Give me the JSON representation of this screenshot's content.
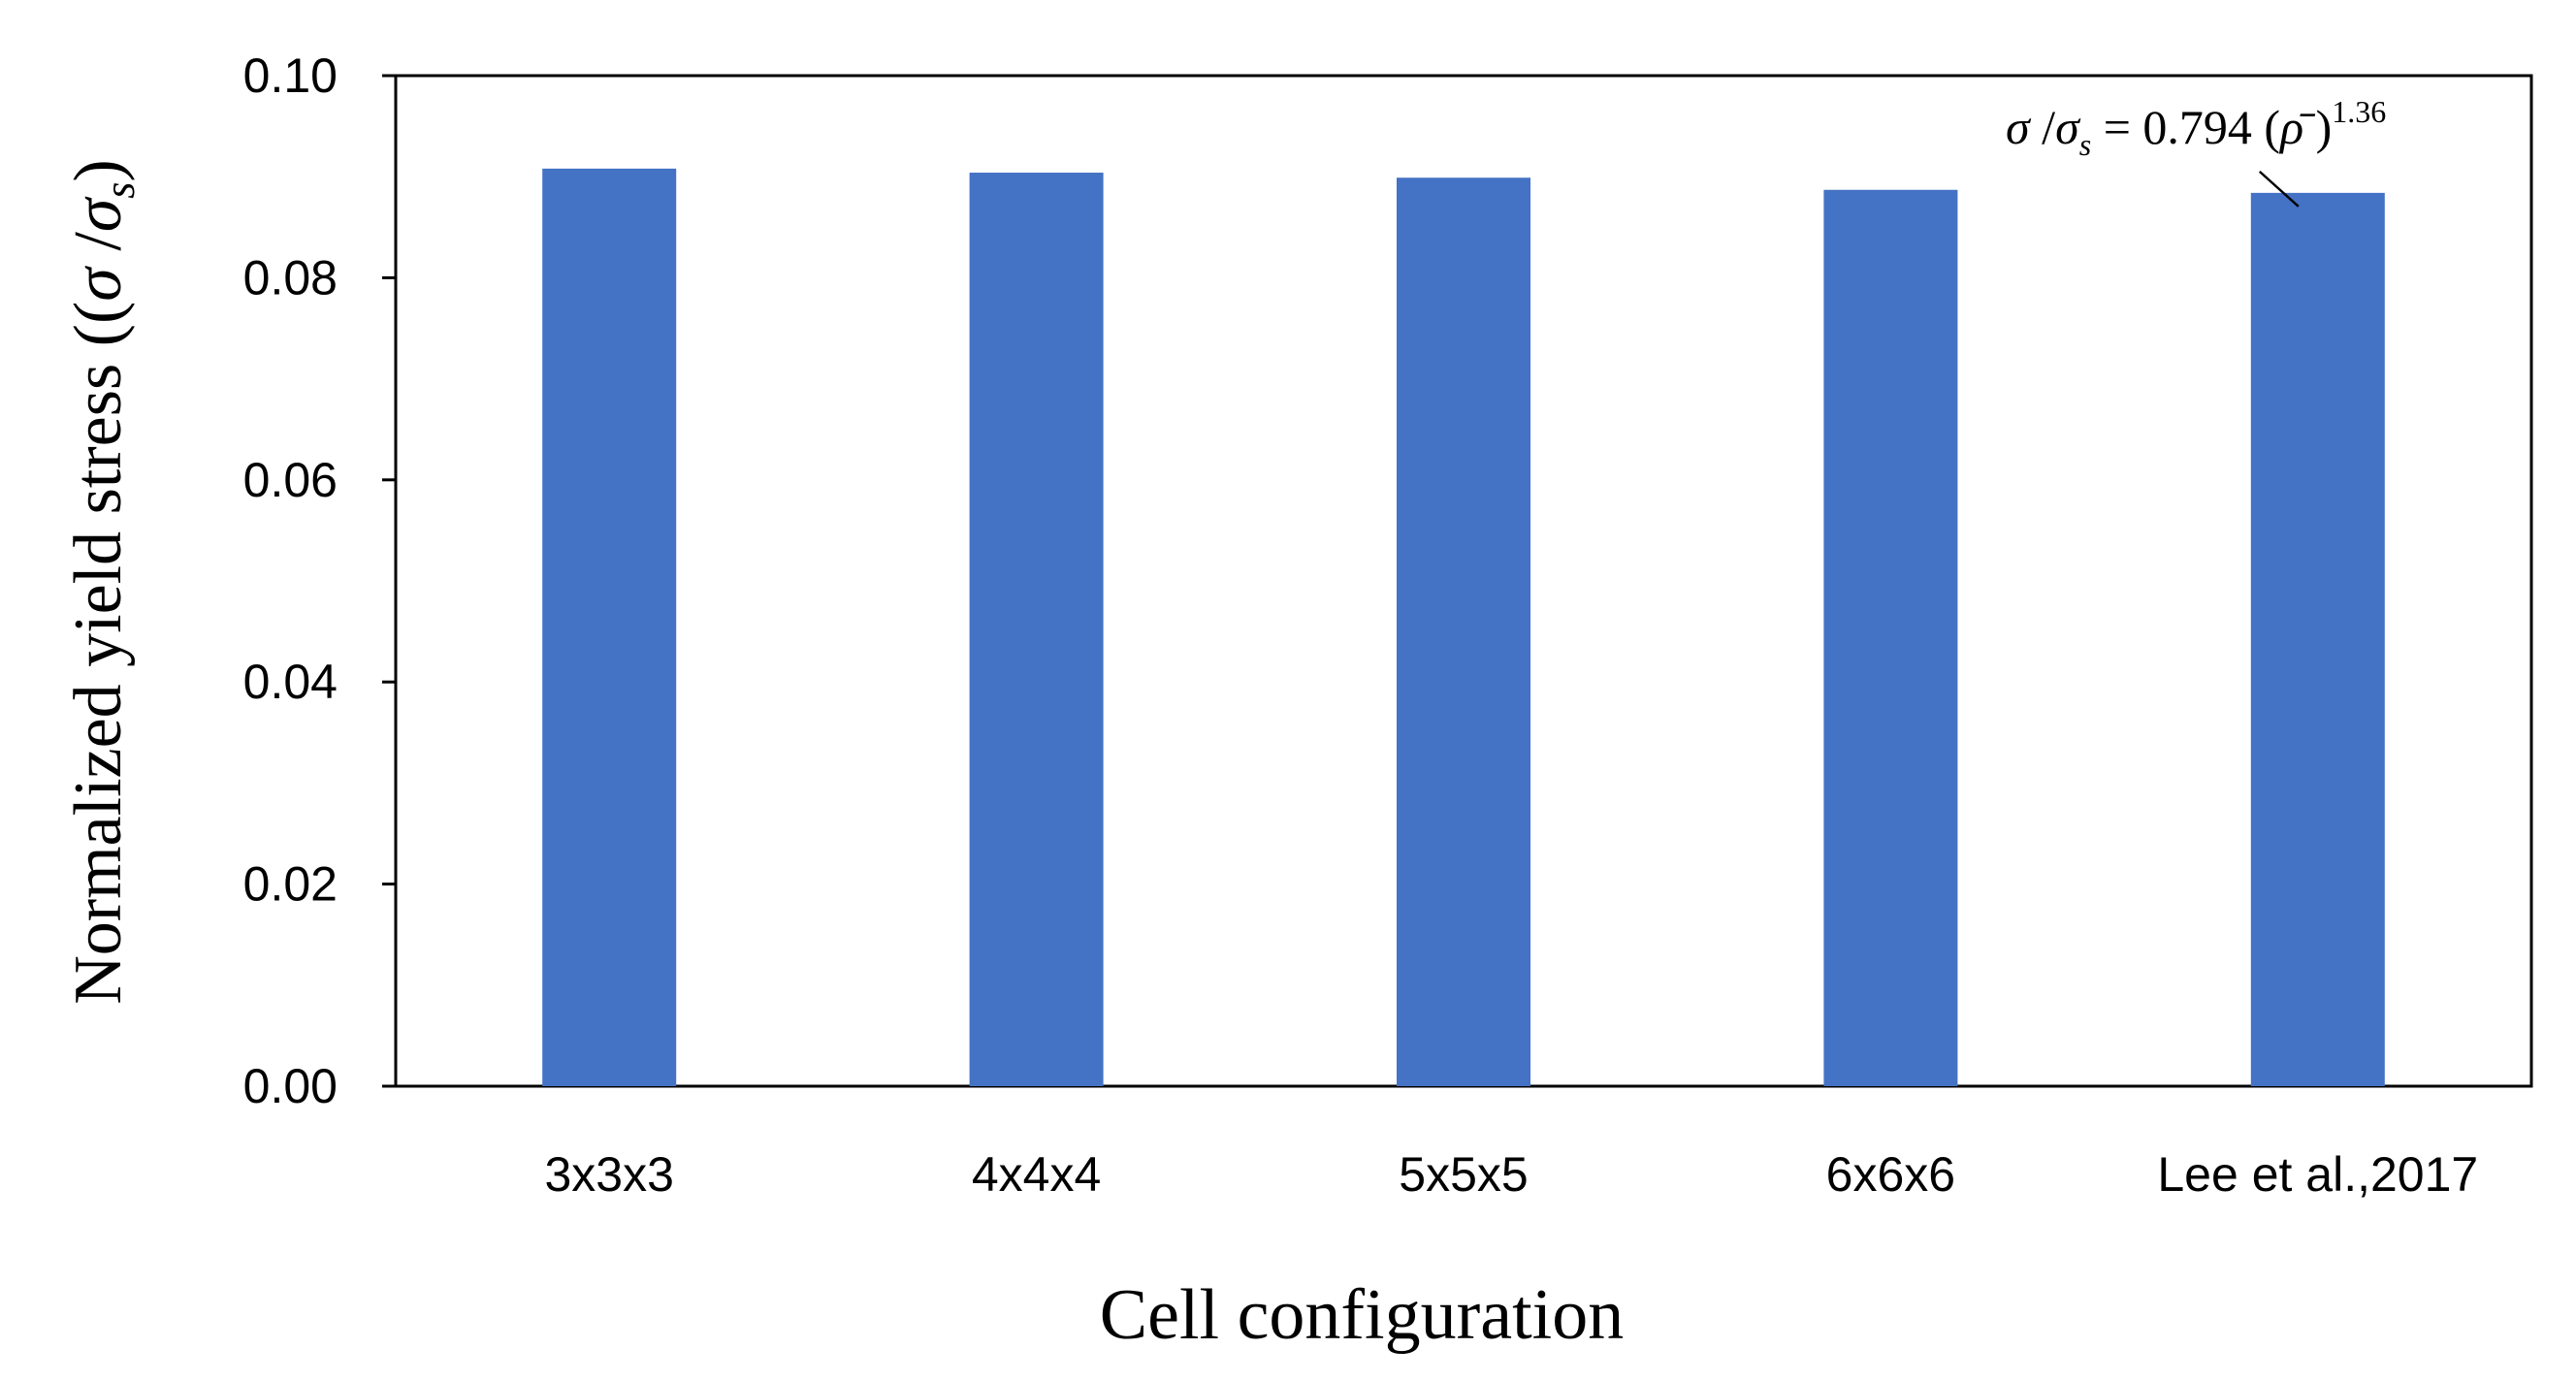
{
  "chart_data": {
    "type": "bar",
    "categories": [
      "3x3x3",
      "4x4x4",
      "5x5x5",
      "6x6x6",
      "Lee et al.,2017"
    ],
    "values": [
      0.0908,
      0.0904,
      0.0899,
      0.0887,
      0.0884
    ],
    "xlabel": "Cell configuration",
    "ylabel": {
      "prefix": "Normalized yield stress ((",
      "sigma": "σ",
      "slash": " /",
      "sigma2": "σ",
      "sub": "s",
      "suffix": ")"
    },
    "ylim": [
      0,
      0.1
    ],
    "yticks": [
      "0.00",
      "0.02",
      "0.04",
      "0.06",
      "0.08",
      "0.10"
    ],
    "grid": false,
    "legend": "none",
    "bar_color": "#4472c4",
    "annotation": {
      "sigma": "σ",
      "slash": " /",
      "sigma2": "σ",
      "sub": "s",
      "equals": " = 0.794 (",
      "rho": "ρ̄",
      "close": " )",
      "exponent": "1.36",
      "target_category": "Lee et al.,2017"
    }
  }
}
